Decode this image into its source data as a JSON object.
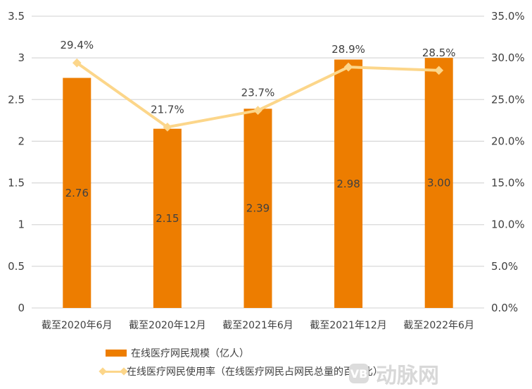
{
  "chart_data": {
    "type": "bar+line",
    "title": "",
    "categories": [
      "截至2020年6月",
      "截至2020年12月",
      "截至2021年6月",
      "截至2021年12月",
      "截至2022年6月"
    ],
    "series": [
      {
        "name": "在线医疗网民规模（亿人）",
        "type": "bar",
        "axis": "left",
        "color": "#ED7D00",
        "values": [
          2.76,
          2.15,
          2.39,
          2.98,
          3.0
        ],
        "labels": [
          "2.76",
          "2.15",
          "2.39",
          "2.98",
          "3.00"
        ]
      },
      {
        "name": "在线医疗网民使用率（在线医疗网民占网民总量的百分比）",
        "type": "line",
        "axis": "right",
        "color": "#FCD68A",
        "marker": "diamond",
        "values": [
          29.4,
          21.7,
          23.7,
          28.9,
          28.5
        ],
        "labels": [
          "29.4%",
          "21.7%",
          "23.7%",
          "28.9%",
          "28.5%"
        ]
      }
    ],
    "left_axis": {
      "ylim": [
        0,
        3.5
      ],
      "ticks": [
        "0",
        "0.5",
        "1",
        "1.5",
        "2",
        "2.5",
        "3",
        "3.5"
      ]
    },
    "right_axis": {
      "ylim": [
        0,
        35
      ],
      "ticks": [
        "0.0%",
        "5.0%",
        "10.0%",
        "15.0%",
        "20.0%",
        "25.0%",
        "30.0%",
        "35.0%"
      ]
    },
    "xlabel": "",
    "ylabel": "",
    "grid": true,
    "legend_position": "bottom"
  },
  "legend": {
    "bar_label": "在线医疗网民规模（亿人）",
    "line_label": "在线医疗网民使用率（在线医疗网民占网民总量的百分比）"
  },
  "watermark": {
    "logo": "VB",
    "text": "动脉网"
  }
}
